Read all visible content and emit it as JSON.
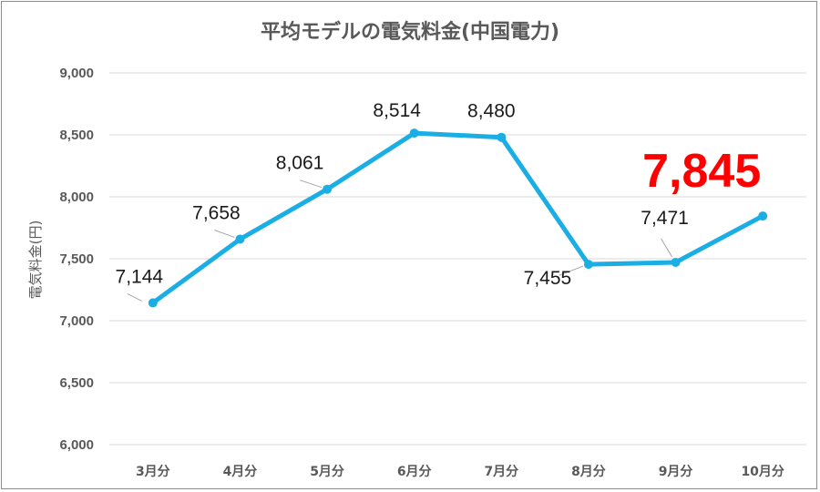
{
  "chart_data": {
    "type": "line",
    "title": "平均モデルの電気料金(中国電力)",
    "ylabel": "電気料金(円)",
    "xlabel": "",
    "categories": [
      "3月分",
      "4月分",
      "5月分",
      "6月分",
      "7月分",
      "8月分",
      "9月分",
      "10月分"
    ],
    "values": [
      7144,
      7658,
      8061,
      8514,
      8480,
      7455,
      7471,
      7845
    ],
    "data_labels": [
      "7,144",
      "7,658",
      "8,061",
      "8,514",
      "8,480",
      "7,455",
      "7,471",
      "7,845"
    ],
    "highlight_index": 7,
    "ylim": [
      6000,
      9000
    ],
    "yticks": [
      6000,
      6500,
      7000,
      7500,
      8000,
      8500,
      9000
    ],
    "ytick_labels": [
      "6,000",
      "6,500",
      "7,000",
      "7,500",
      "8,000",
      "8,500",
      "9,000"
    ],
    "grid": true,
    "legend": "none",
    "colors": {
      "series": "#1aaee5",
      "highlight_label": "#ff0000",
      "grid": "#d9d9d9",
      "axis_text": "#595959"
    }
  }
}
